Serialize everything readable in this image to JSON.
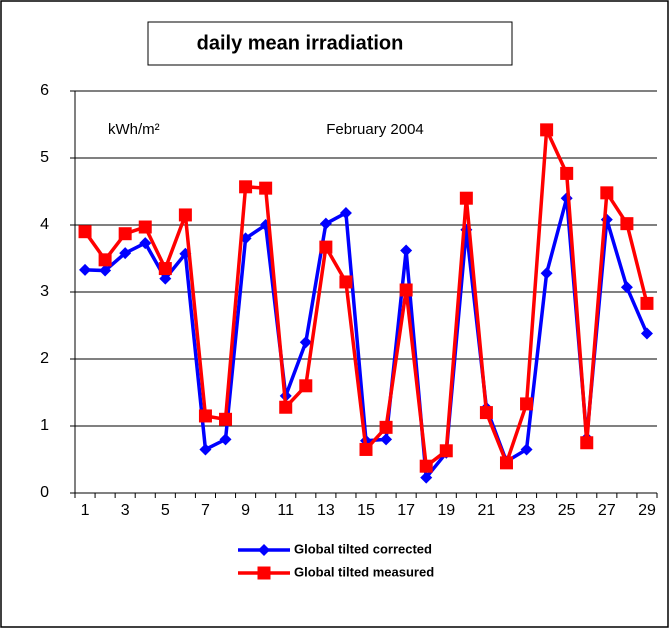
{
  "chart_data": {
    "type": "line",
    "title": "daily mean irradiation",
    "annotations": [
      "kWh/m²",
      "February 2004"
    ],
    "categories": [
      "1",
      null,
      "3",
      null,
      "5",
      null,
      "7",
      null,
      "9",
      null,
      "11",
      null,
      "13",
      null,
      "15",
      null,
      "17",
      null,
      "19",
      null,
      "21",
      null,
      "23",
      null,
      "25",
      null,
      "27",
      null,
      "29"
    ],
    "series": [
      {
        "name": "Global tilted corrected",
        "color": "#0000ff",
        "marker": "diamond",
        "values": [
          3.33,
          3.32,
          3.58,
          3.73,
          3.2,
          3.57,
          0.65,
          0.8,
          3.8,
          4.0,
          1.45,
          2.25,
          4.02,
          4.18,
          0.78,
          0.8,
          3.62,
          0.23,
          0.6,
          3.93,
          1.27,
          0.47,
          0.65,
          3.28,
          4.4,
          0.82,
          4.08,
          3.07,
          2.38
        ]
      },
      {
        "name": "Global tilted measured",
        "color": "#ff0000",
        "marker": "square",
        "values": [
          3.9,
          3.48,
          3.87,
          3.97,
          3.35,
          4.15,
          1.15,
          1.1,
          4.57,
          4.55,
          1.28,
          1.6,
          3.67,
          3.15,
          0.65,
          0.98,
          3.03,
          0.4,
          0.63,
          4.4,
          1.2,
          0.45,
          1.33,
          5.42,
          4.77,
          0.75,
          4.48,
          4.02,
          2.83
        ]
      }
    ],
    "ylim": [
      0,
      6
    ],
    "yticks": [
      0,
      1,
      2,
      3,
      4,
      5,
      6
    ],
    "grid": true,
    "legend": "bottom"
  }
}
